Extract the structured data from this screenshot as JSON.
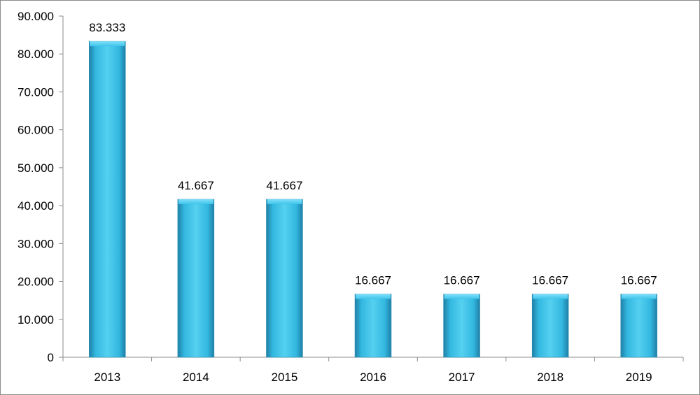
{
  "chart_data": {
    "type": "bar",
    "title": "",
    "xlabel": "",
    "ylabel": "",
    "categories": [
      "2013",
      "2014",
      "2015",
      "2016",
      "2017",
      "2018",
      "2019"
    ],
    "values": [
      83.333,
      41.667,
      41.667,
      16.667,
      16.667,
      16.667,
      16.667
    ],
    "data_labels": [
      "83.333",
      "41.667",
      "41.667",
      "16.667",
      "16.667",
      "16.667",
      "16.667"
    ],
    "ylim": [
      0,
      90
    ],
    "yticks": [
      0,
      10,
      20,
      30,
      40,
      50,
      60,
      70,
      80,
      90
    ],
    "ytick_labels": [
      "0",
      "10.000",
      "20.000",
      "30.000",
      "40.000",
      "50.000",
      "60.000",
      "70.000",
      "80.000",
      "90.000"
    ],
    "grid": false,
    "legend": "none",
    "colors": {
      "bar_light": "#55d0f0",
      "bar_mid": "#33b8e0",
      "bar_dark": "#1f7fa6",
      "axis": "#8c8c8c"
    }
  }
}
